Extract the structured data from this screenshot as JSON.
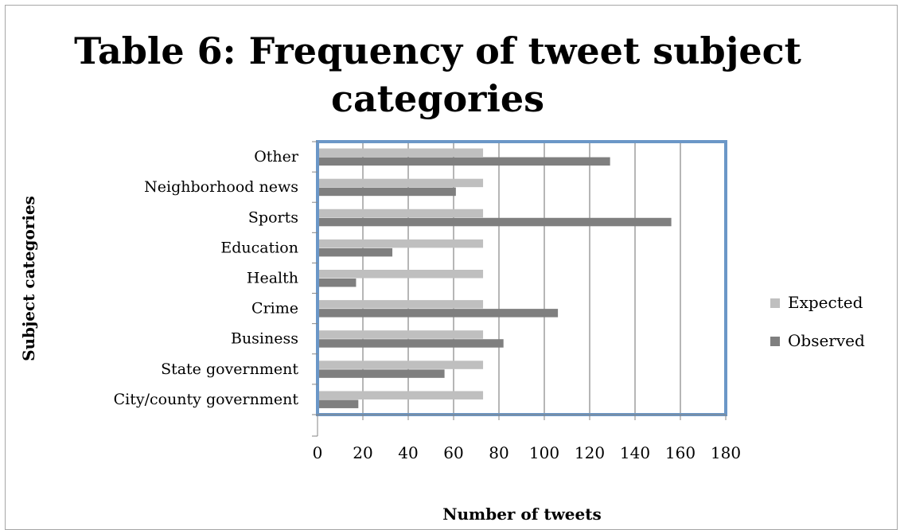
{
  "chart_data": {
    "type": "bar",
    "orientation": "horizontal",
    "title": "Table 6: Frequency of tweet subject categories",
    "title_lines": [
      "Table 6: Frequency of tweet subject",
      "categories"
    ],
    "xlabel": "Number of tweets",
    "ylabel": "Subject categories",
    "xlim": [
      0,
      180
    ],
    "xticks": [
      0,
      20,
      40,
      60,
      80,
      100,
      120,
      140,
      160,
      180
    ],
    "grid": "vertical",
    "legend_position": "right",
    "categories": [
      "City/county government",
      "State government",
      "Business",
      "Crime",
      "Health",
      "Education",
      "Sports",
      "Neighborhood news",
      "Other"
    ],
    "series": [
      {
        "name": "Expected",
        "color": "#bfbfbf",
        "values": [
          73,
          73,
          73,
          73,
          73,
          73,
          73,
          73,
          73
        ]
      },
      {
        "name": "Observed",
        "color": "#7f7f7f",
        "values": [
          18,
          56,
          82,
          106,
          17,
          33,
          156,
          61,
          129
        ]
      }
    ]
  },
  "colors": {
    "plot_border": "#6b97c7",
    "gridline": "#868686",
    "frame_border": "#a6a6a6"
  }
}
